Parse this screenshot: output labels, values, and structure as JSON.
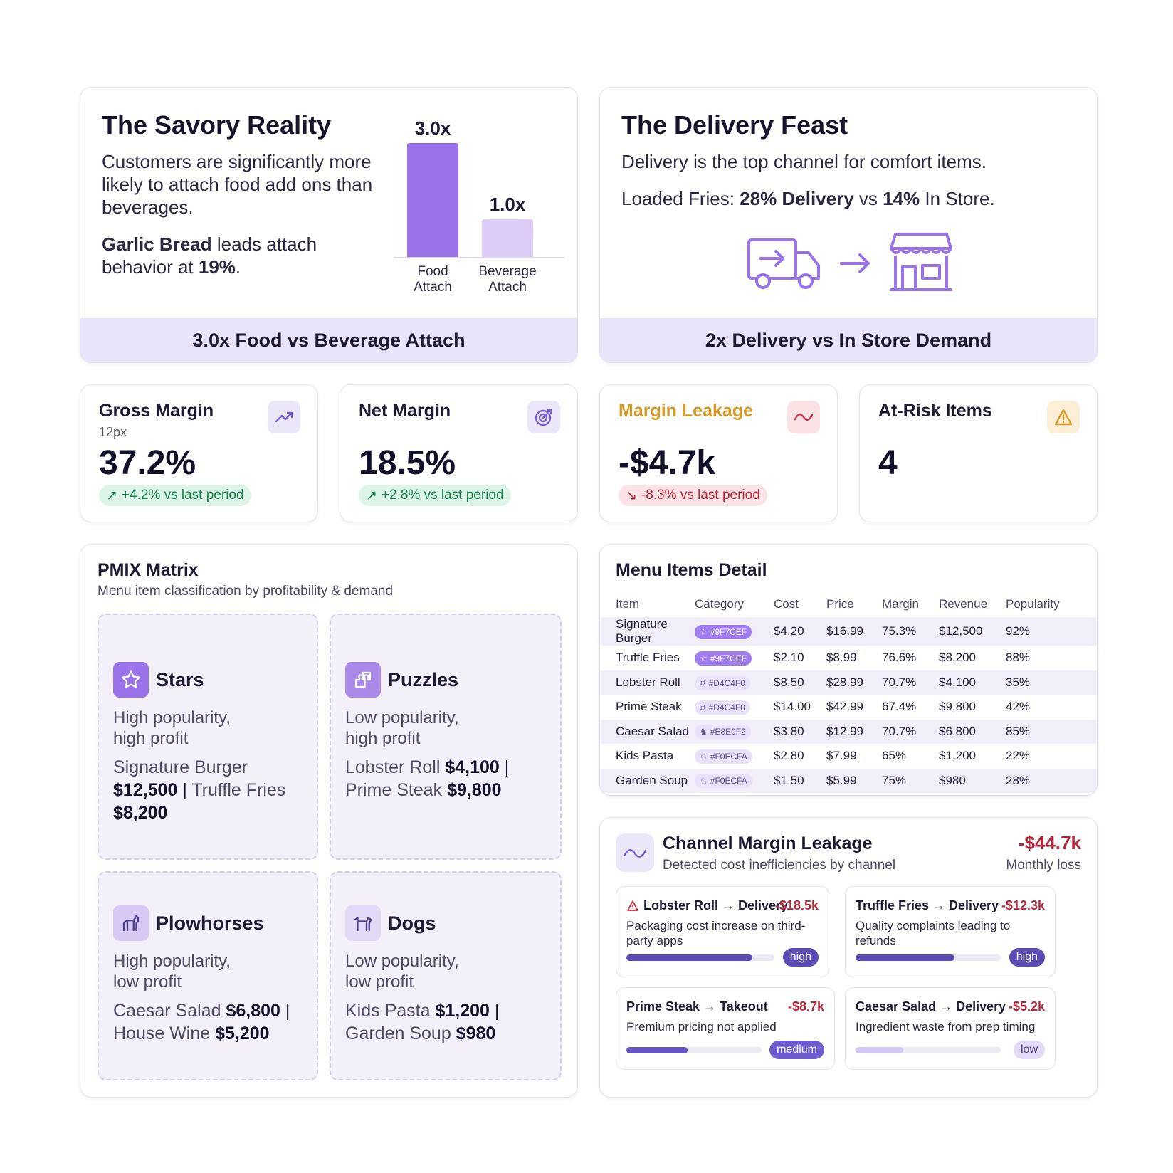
{
  "savory": {
    "title": "The Savory Reality",
    "body": "Customers are significantly more likely to attach food add ons than beverages.",
    "lead_bold": "Garlic Bread",
    "lead_mid": " leads attach behavior at ",
    "lead_pct": "19%",
    "lead_end": ".",
    "band": "3.0x Food vs Beverage Attach"
  },
  "chart_data": {
    "type": "bar",
    "categories": [
      "Food Attach",
      "Beverage Attach"
    ],
    "values": [
      3.0,
      1.0
    ],
    "value_labels": [
      "3.0x",
      "1.0x"
    ],
    "ylim": [
      0,
      3.0
    ],
    "colors": [
      "#9a72ea",
      "#dcccf7"
    ]
  },
  "delivery": {
    "title": "The Delivery Feast",
    "line1": "Delivery is the top channel for comfort items.",
    "line2_pre": "Loaded Fries: ",
    "line2_b1": "28% Delivery",
    "line2_mid": " vs ",
    "line2_b2": "14%",
    "line2_end": " In Store.",
    "band": "2x Delivery vs In Store Demand",
    "icons": [
      "delivery-truck-icon",
      "arrow-right-icon",
      "storefront-icon"
    ]
  },
  "kpis": {
    "gross": {
      "title": "Gross Margin",
      "sub": "12px",
      "value": "37.2%",
      "arrow": "↗",
      "delta": "+4.2% vs last period",
      "icon": "trend-up-icon"
    },
    "net": {
      "title": "Net Margin",
      "value": "18.5%",
      "arrow": "↗",
      "delta": "+2.8% vs last period",
      "icon": "target-icon"
    },
    "leak": {
      "title": "Margin Leakage",
      "value": "-$4.7k",
      "arrow": "↘",
      "delta": "-8.3% vs last period",
      "icon": "wave-icon",
      "title_color": "#d49a2a"
    },
    "risk": {
      "title": "At-Risk Items",
      "value": "4",
      "icon": "warning-icon"
    }
  },
  "pmix": {
    "title": "PMIX Matrix",
    "subtitle": "Menu item classification by profitability & demand",
    "stars": {
      "title": "Stars",
      "d1": "High popularity,",
      "d2": "high profit",
      "i1": "Signature Burger",
      "v1": "$12,500",
      "sep": " | ",
      "i2": "Truffle Fries",
      "v2": "$8,200"
    },
    "puzzles": {
      "title": "Puzzles",
      "d1": "Low popularity,",
      "d2": "high profit",
      "i1": "Lobster Roll",
      "v1": "$4,100",
      "sep": " |",
      "i2": "Prime Steak",
      "v2": "$9,800"
    },
    "plowhorses": {
      "title": "Plowhorses",
      "d1": "High popularity,",
      "d2": "low profit",
      "i1": "Caesar Salad",
      "v1": "$6,800",
      "sep": " |",
      "i2": "House Wine",
      "v2": "$5,200"
    },
    "dogs": {
      "title": "Dogs",
      "d1": "Low popularity,",
      "d2": "low profit",
      "i1": "Kids Pasta",
      "v1": "$1,200",
      "sep": " |",
      "i2": "Garden Soup",
      "v2": "$980"
    }
  },
  "menu": {
    "title": "Menu Items Detail",
    "headers": [
      "Item",
      "Category",
      "Cost",
      "Price",
      "Margin",
      "Revenue",
      "Popularity"
    ],
    "rows": [
      {
        "item": "Signature Burger",
        "cat_icon": "☆",
        "cat": "#9F7CEF",
        "cost": "$4.20",
        "price": "$16.99",
        "margin": "75.3%",
        "revenue": "$12,500",
        "pop": "92%"
      },
      {
        "item": "Truffle Fries",
        "cat_icon": "☆",
        "cat": "#9F7CEF",
        "cost": "$2.10",
        "price": "$8.99",
        "margin": "76.6%",
        "revenue": "$8,200",
        "pop": "88%"
      },
      {
        "item": "Lobster Roll",
        "cat_icon": "⧉",
        "cat": "#D4C4F0",
        "cost": "$8.50",
        "price": "$28.99",
        "margin": "70.7%",
        "revenue": "$4,100",
        "pop": "35%"
      },
      {
        "item": "Prime Steak",
        "cat_icon": "⧉",
        "cat": "#D4C4F0",
        "cost": "$14.00",
        "price": "$42.99",
        "margin": "67.4%",
        "revenue": "$9,800",
        "pop": "42%"
      },
      {
        "item": "Caesar Salad",
        "cat_icon": "♞",
        "cat": "#E8E0F2",
        "cost": "$3.80",
        "price": "$12.99",
        "margin": "70.7%",
        "revenue": "$6,800",
        "pop": "85%"
      },
      {
        "item": "Kids Pasta",
        "cat_icon": "♘",
        "cat": "#F0ECFA",
        "cost": "$2.80",
        "price": "$7.99",
        "margin": "65%",
        "revenue": "$1,200",
        "pop": "22%"
      },
      {
        "item": "Garden Soup",
        "cat_icon": "♘",
        "cat": "#F0ECFA",
        "cost": "$1.50",
        "price": "$5.99",
        "margin": "75%",
        "revenue": "$980",
        "pop": "28%"
      }
    ]
  },
  "channel": {
    "title": "Channel Margin Leakage",
    "subtitle": "Detected cost inefficiencies by channel",
    "total": "-$44.7k",
    "total_label": "Monthly loss",
    "items": [
      {
        "title": "Lobster Roll → Delivery",
        "amount": "-$18.5k",
        "desc": "Packaging cost increase on third-party apps",
        "level": 0.85,
        "severity": "high",
        "warn": true
      },
      {
        "title": "Truffle Fries → Delivery",
        "amount": "-$12.3k",
        "desc": "Quality complaints leading to refunds",
        "level": 0.68,
        "severity": "high",
        "warn": false
      },
      {
        "title": "Prime Steak → Takeout",
        "amount": "-$8.7k",
        "desc": "Premium pricing not applied",
        "level": 0.45,
        "severity": "medium",
        "warn": false
      },
      {
        "title": "Caesar Salad → Delivery",
        "amount": "-$5.2k",
        "desc": "Ingredient waste from prep timing",
        "level": 0.33,
        "severity": "low",
        "warn": false
      }
    ],
    "colors": {
      "high": "#5b4bb5",
      "medium": "#6654c4",
      "low": "#d4c6f3",
      "high_bg": "#5b4bb5",
      "medium_bg": "#6d5bd0",
      "low_bg": "#e3dbf7"
    }
  }
}
